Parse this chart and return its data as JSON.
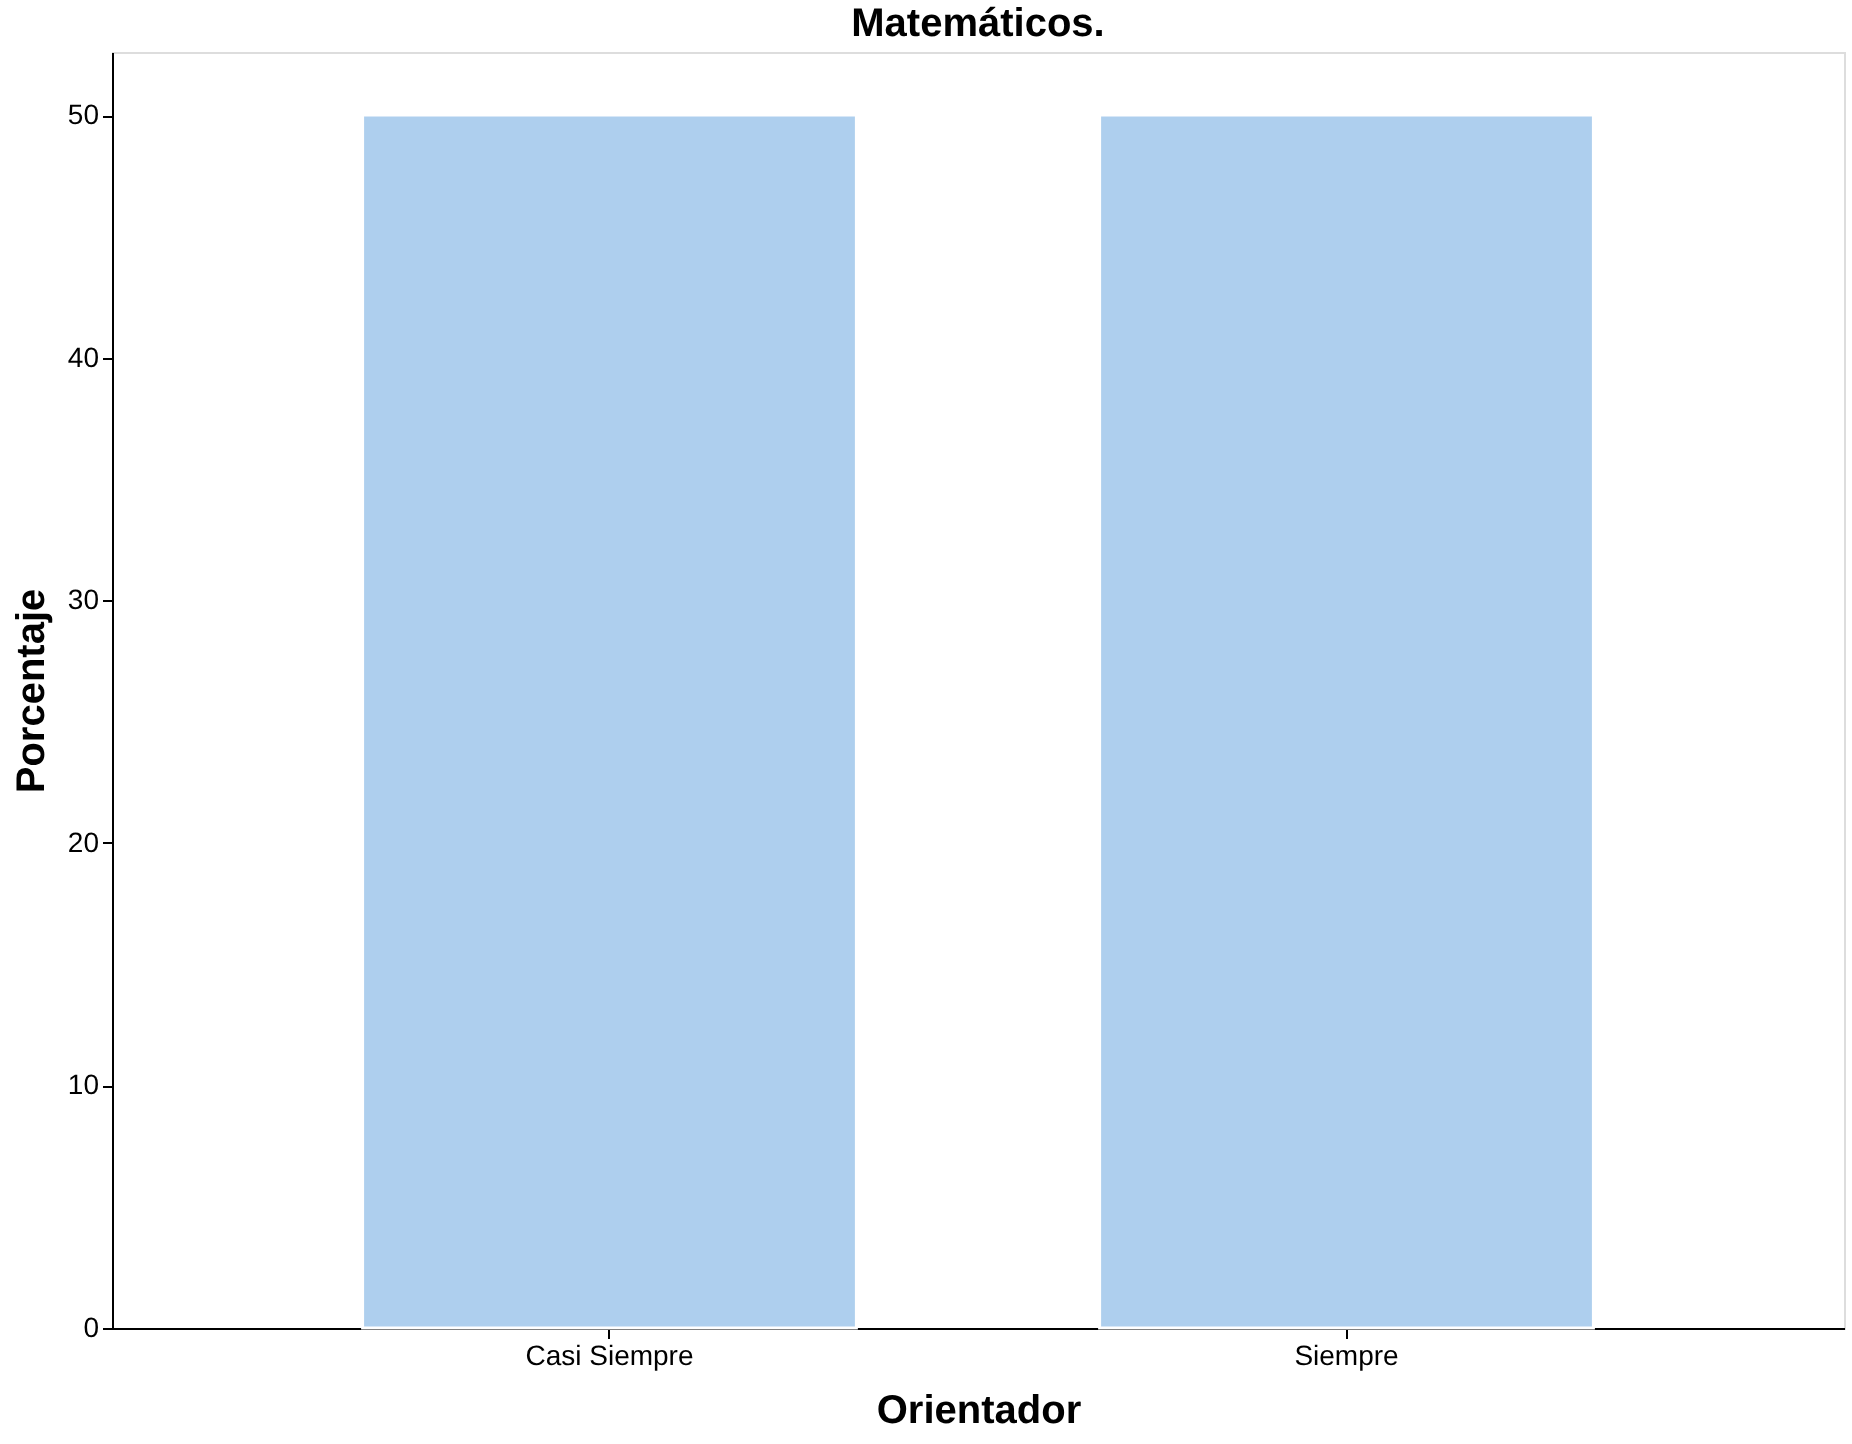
{
  "chart_data": {
    "type": "bar",
    "title": "Matemáticos.",
    "xlabel": "Orientador",
    "ylabel": "Porcentaje",
    "categories": [
      "Casi Siempre",
      "Siempre"
    ],
    "values": [
      50,
      50
    ],
    "color": "#aecfee",
    "ylim": [
      0,
      52.6
    ],
    "yticks": [
      0,
      10,
      20,
      30,
      40,
      50
    ],
    "grid": false
  }
}
